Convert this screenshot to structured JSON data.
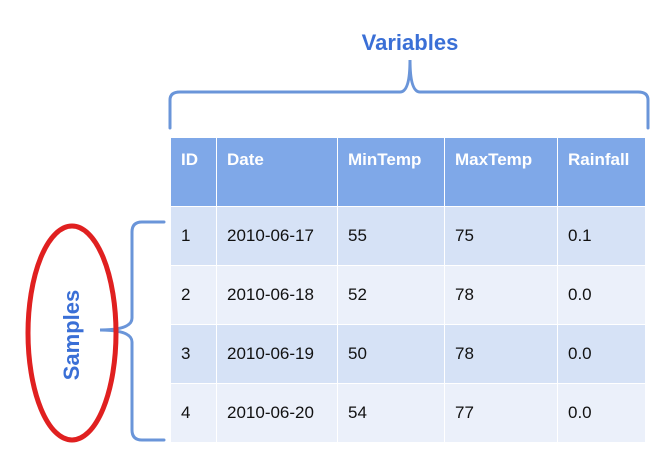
{
  "labels": {
    "variables": "Variables",
    "samples": "Samples"
  },
  "table": {
    "headers": [
      "ID",
      "Date",
      "MinTemp",
      "MaxTemp",
      "Rainfall"
    ],
    "rows": [
      [
        "1",
        "2010-06-17",
        "55",
        "75",
        "0.1"
      ],
      [
        "2",
        "2010-06-18",
        "52",
        "78",
        "0.0"
      ],
      [
        "3",
        "2010-06-19",
        "50",
        "78",
        "0.0"
      ],
      [
        "4",
        "2010-06-20",
        "54",
        "77",
        "0.0"
      ]
    ]
  },
  "colors": {
    "bracket": "#6a95d9",
    "label": "#3a6fd6",
    "header_bg": "#7fa8e8",
    "row_dark": "#d6e2f6",
    "row_light": "#ebf0fa",
    "ellipse": "#e02020"
  }
}
